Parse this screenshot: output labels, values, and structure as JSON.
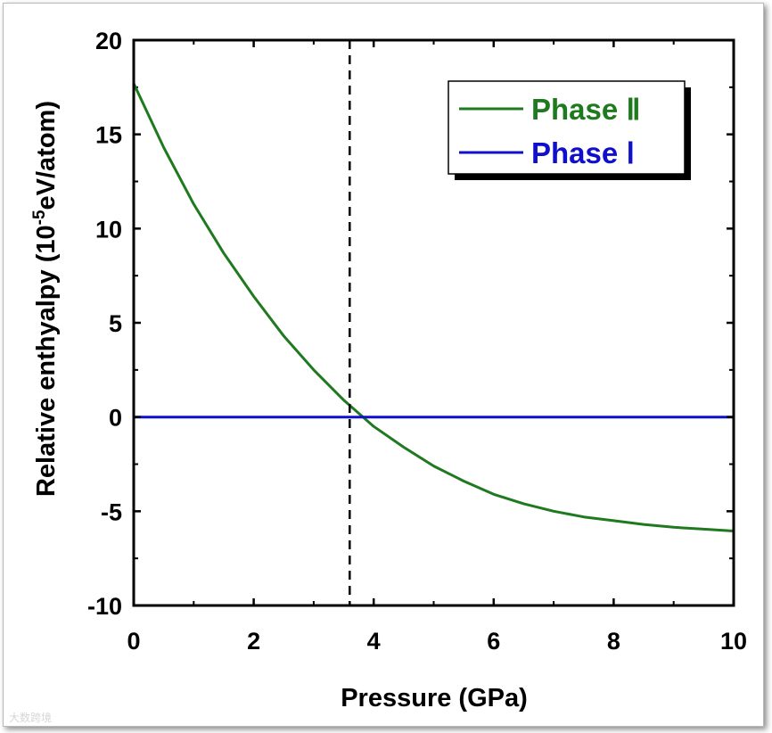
{
  "chart_data": {
    "type": "line",
    "xlabel": "Pressure (GPa)",
    "ylabel": {
      "prefix": "Relative enthyalpy (10",
      "exponent": "-5",
      "suffix": "eV/atom)"
    },
    "xlim": [
      0,
      10
    ],
    "ylim": [
      -10,
      20
    ],
    "x_ticks": [
      0,
      2,
      4,
      6,
      8,
      10
    ],
    "y_ticks": [
      20,
      15,
      10,
      5,
      0,
      -5,
      -10
    ],
    "transition_pressure": 3.6,
    "legend_position": "top-right",
    "series": [
      {
        "name": "Phase Ⅱ",
        "color": "#1f7a1f",
        "x": [
          0,
          0.5,
          1,
          1.5,
          2,
          2.5,
          3,
          3.5,
          4,
          4.5,
          5,
          5.5,
          6,
          6.5,
          7,
          7.5,
          8,
          8.5,
          9,
          9.5,
          10
        ],
        "y": [
          17.7,
          14.3,
          11.3,
          8.7,
          6.4,
          4.3,
          2.5,
          0.9,
          -0.5,
          -1.6,
          -2.6,
          -3.4,
          -4.1,
          -4.6,
          -5.0,
          -5.3,
          -5.5,
          -5.7,
          -5.85,
          -5.95,
          -6.05
        ]
      },
      {
        "name": "Phase Ⅰ",
        "color": "#1010cc",
        "x": [
          0,
          10
        ],
        "y": [
          0,
          0
        ]
      }
    ]
  },
  "watermark": "大数跨境"
}
